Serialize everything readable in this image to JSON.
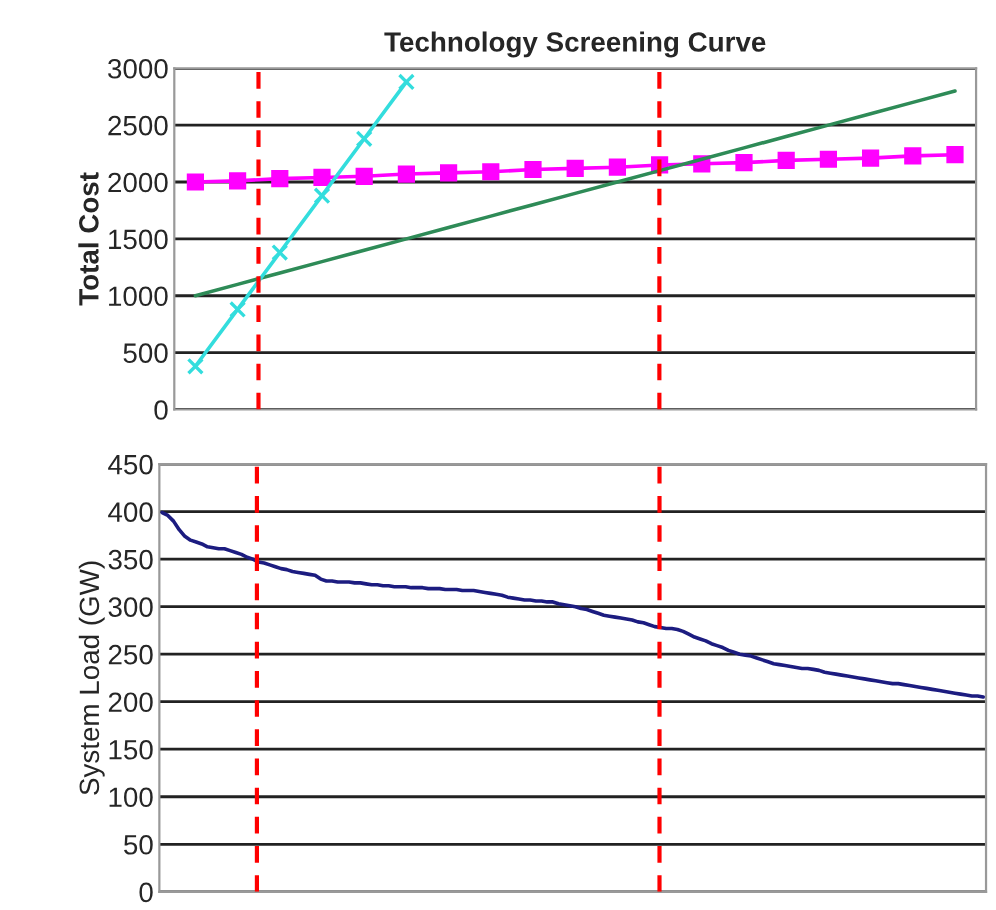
{
  "chart_data": [
    {
      "type": "line",
      "title": "Technology Screening Curve",
      "ylabel": "Total Cost",
      "categories": [
        null,
        null,
        null,
        null,
        null,
        null,
        null,
        null,
        null,
        null,
        null,
        null,
        null,
        null,
        null,
        null,
        null,
        null,
        null
      ],
      "ylim": [
        0,
        3000
      ],
      "yticks": [
        0,
        500,
        1000,
        1500,
        2000,
        2500,
        3000
      ],
      "tick_labels": "y",
      "grid": "y",
      "legend": false,
      "series": [
        {
          "color": "#ff00ff",
          "marker": "square",
          "values": [
            2000,
            2010,
            2030,
            2040,
            2050,
            2070,
            2080,
            2090,
            2110,
            2120,
            2130,
            2150,
            2160,
            2170,
            2190,
            2200,
            2210,
            2230,
            2240
          ]
        },
        {
          "color": "#2e8b57",
          "marker": "none",
          "values": [
            1000,
            1100,
            1200,
            1300,
            1400,
            1500,
            1600,
            1700,
            1800,
            1900,
            2000,
            2100,
            2200,
            2300,
            2400,
            2500,
            2600,
            2700,
            2800
          ]
        },
        {
          "color": "#33dddd",
          "marker": "cross",
          "values": [
            380,
            880,
            1380,
            1880,
            2380,
            2880,
            null,
            null,
            null,
            null,
            null,
            null,
            null,
            null,
            null,
            null,
            null,
            null,
            null
          ]
        }
      ]
    },
    {
      "type": "line",
      "ylabel": "System Load (GW)",
      "categories": [
        null,
        null,
        null,
        null,
        null,
        null,
        null,
        null,
        null,
        null,
        null,
        null,
        null,
        null,
        null,
        null,
        null,
        null,
        null,
        null,
        null,
        null,
        null,
        null,
        null,
        null,
        null,
        null,
        null,
        null,
        null,
        null,
        null,
        null,
        null,
        null,
        null,
        null,
        null,
        null,
        null,
        null,
        null,
        null,
        null,
        null,
        null,
        null,
        null,
        null,
        null,
        null,
        null,
        null,
        null,
        null,
        null,
        null,
        null,
        null,
        null,
        null,
        null,
        null,
        null,
        null,
        null,
        null,
        null,
        null,
        null,
        null,
        null,
        null,
        null,
        null,
        null,
        null,
        null,
        null,
        null,
        null,
        null,
        null,
        null,
        null,
        null,
        null,
        null,
        null,
        null,
        null,
        null,
        null,
        null,
        null,
        null,
        null,
        null,
        null,
        null,
        null,
        null,
        null,
        null,
        null,
        null,
        null,
        null,
        null,
        null,
        null,
        null,
        null,
        null,
        null,
        null,
        null,
        null,
        null,
        null,
        null,
        null,
        null,
        null,
        null,
        null,
        null,
        null,
        null,
        null,
        null,
        null,
        null,
        null,
        null,
        null,
        null,
        null,
        null,
        null,
        null,
        null,
        null,
        null,
        null
      ],
      "ylim": [
        0,
        450
      ],
      "yticks": [
        0,
        50,
        100,
        150,
        200,
        250,
        300,
        350,
        400,
        450
      ],
      "tick_labels": "y",
      "grid": "y",
      "legend": false,
      "series": [
        {
          "color": "#1c1c80",
          "marker": "none",
          "values": [
            399,
            396,
            390,
            381,
            374,
            370,
            368,
            366,
            363,
            362,
            361,
            361,
            359,
            357,
            355,
            352,
            350,
            347,
            346,
            344,
            342,
            340,
            339,
            337,
            336,
            335,
            334,
            333,
            329,
            327,
            327,
            326,
            326,
            326,
            325,
            325,
            324,
            323,
            323,
            322,
            322,
            321,
            321,
            321,
            320,
            320,
            320,
            319,
            319,
            319,
            318,
            318,
            318,
            317,
            317,
            317,
            316,
            315,
            314,
            313,
            312,
            310,
            309,
            308,
            307,
            307,
            306,
            306,
            305,
            305,
            303,
            302,
            301,
            300,
            298,
            297,
            295,
            293,
            291,
            290,
            289,
            288,
            287,
            286,
            284,
            283,
            281,
            279,
            278,
            277,
            277,
            276,
            274,
            271,
            268,
            266,
            264,
            261,
            259,
            257,
            254,
            252,
            250,
            249,
            248,
            246,
            244,
            242,
            240,
            239,
            238,
            237,
            236,
            235,
            235,
            234,
            233,
            231,
            230,
            229,
            228,
            227,
            226,
            225,
            224,
            223,
            222,
            221,
            220,
            219,
            219,
            218,
            217,
            216,
            215,
            214,
            213,
            212,
            211,
            210,
            209,
            208,
            207,
            206,
            206,
            205
          ]
        }
      ]
    }
  ]
}
